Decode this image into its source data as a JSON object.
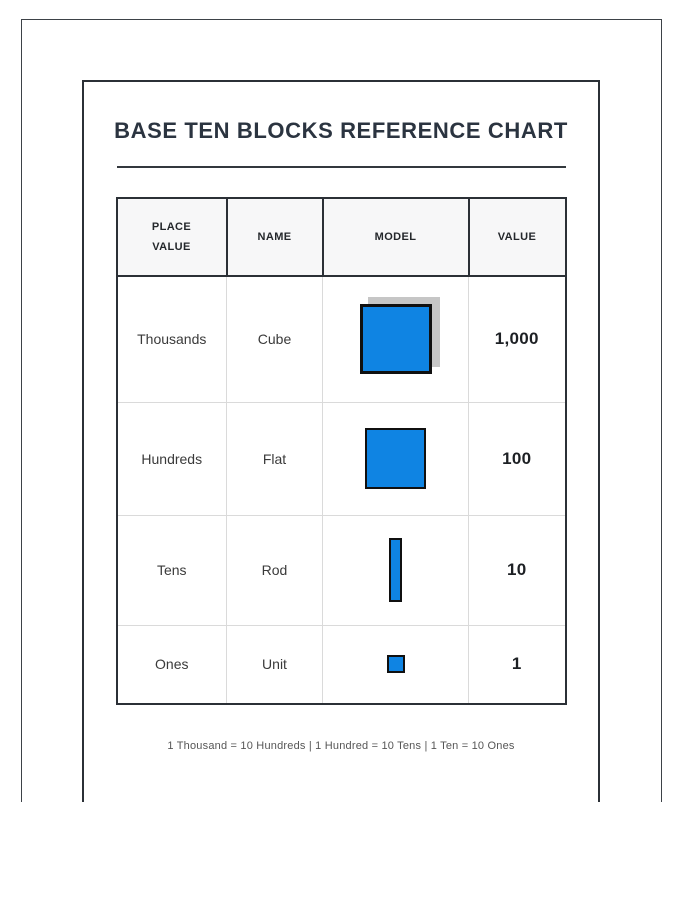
{
  "document": {
    "title": "BASE TEN BLOCKS REFERENCE CHART"
  },
  "table": {
    "headers": [
      "PLACE\nVALUE",
      "NAME",
      "MODEL",
      "VALUE"
    ],
    "rows": [
      {
        "place_value": "Thousands",
        "name": "Cube",
        "model_icon": "cube-block",
        "value": "1,000"
      },
      {
        "place_value": "Hundreds",
        "name": "Flat",
        "model_icon": "flat-block",
        "value": "100"
      },
      {
        "place_value": "Tens",
        "name": "Rod",
        "model_icon": "rod-block",
        "value": "10"
      },
      {
        "place_value": "Ones",
        "name": "Unit",
        "model_icon": "unit-block",
        "value": "1"
      }
    ]
  },
  "footer": {
    "note": "1 Thousand = 10 Hundreds | 1 Hundred = 10 Tens | 1 Ten = 10 Ones"
  },
  "colors": {
    "block_fill": "#0f84e3",
    "block_border": "#101010",
    "cube_shadow": "#c6c6c6",
    "border_dark": "#2b3036"
  }
}
